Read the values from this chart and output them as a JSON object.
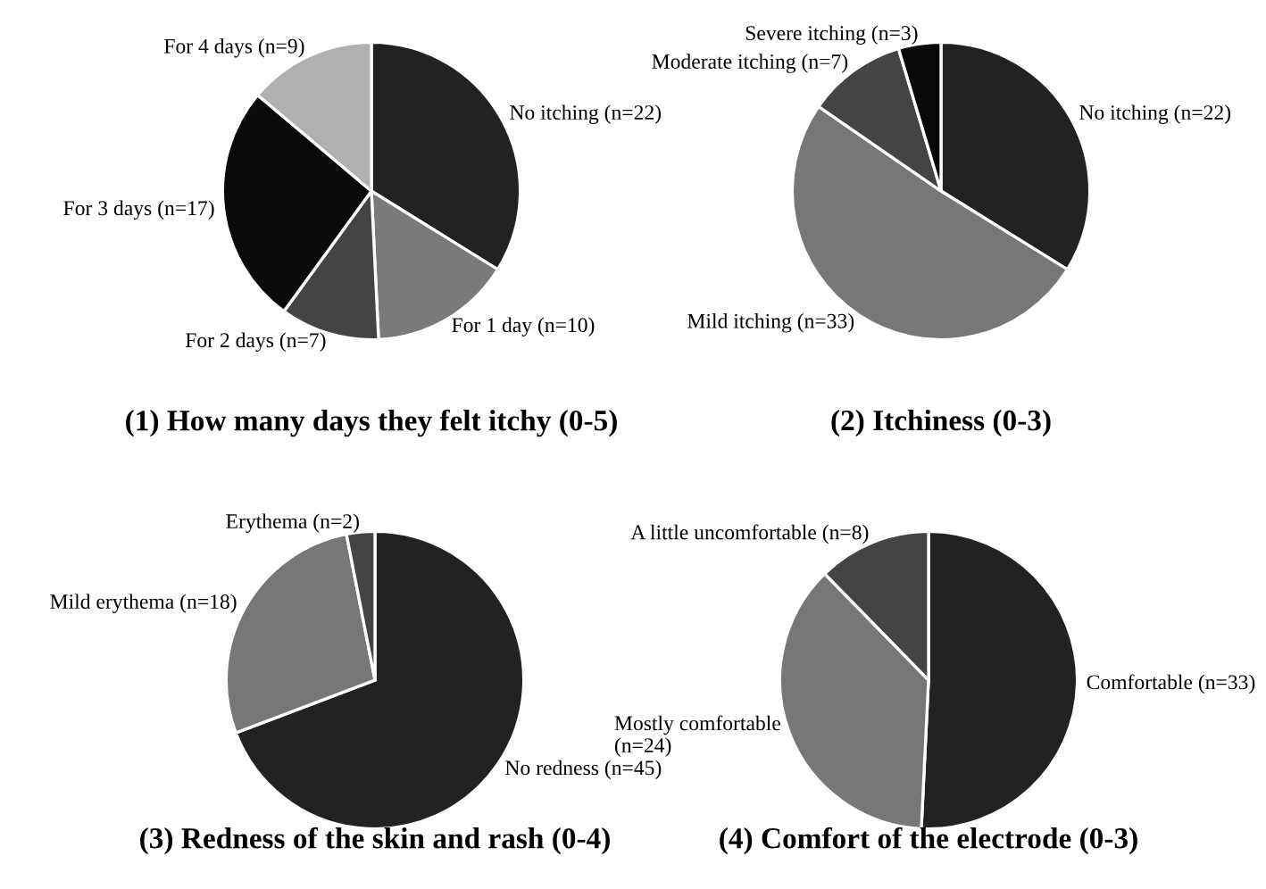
{
  "chart_data": [
    {
      "type": "pie",
      "title": "(1) How many days they felt itchy (0-5)",
      "categories": [
        "No itching (n=22)",
        "For 1 day (n=10)",
        "For 2 days (n=7)",
        "For 3 days (n=17)",
        "For 4 days (n=9)"
      ],
      "values": [
        22,
        10,
        7,
        17,
        9
      ],
      "colors": [
        "#222222",
        "#7a7a7a",
        "#444444",
        "#0a0a0a",
        "#b0b0b0"
      ]
    },
    {
      "type": "pie",
      "title": "(2) Itchiness (0-3)",
      "categories": [
        "No itching (n=22)",
        "Mild itching (n=33)",
        "Moderate itching (n=7)",
        "Severe itching (n=3)"
      ],
      "values": [
        22,
        33,
        7,
        3
      ],
      "colors": [
        "#222222",
        "#777777",
        "#444444",
        "#080808"
      ]
    },
    {
      "type": "pie",
      "title": "(3) Redness of the skin and rash (0-4)",
      "categories": [
        "No redness (n=45)",
        "Mild erythema (n=18)",
        "Erythema (n=2)"
      ],
      "values": [
        45,
        18,
        2
      ],
      "colors": [
        "#222222",
        "#777777",
        "#444444"
      ]
    },
    {
      "type": "pie",
      "title": "(4) Comfort of the electrode (0-3)",
      "categories": [
        "Comfortable (n=33)",
        "Mostly comfortable\n(n=24)",
        "A little uncomfortable (n=8)"
      ],
      "values": [
        33,
        24,
        8
      ],
      "colors": [
        "#222222",
        "#777777",
        "#444444"
      ]
    }
  ]
}
